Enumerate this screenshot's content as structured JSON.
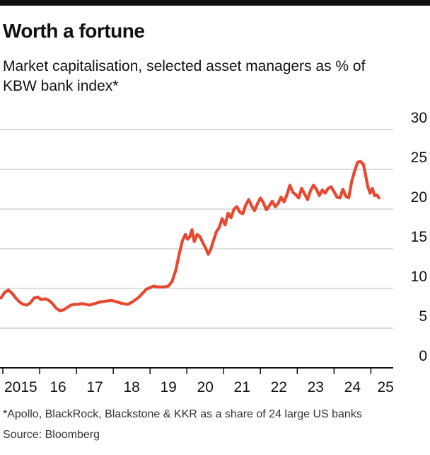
{
  "title": "Worth a fortune",
  "subtitle": "Market capitalisation, selected asset managers as % of KBW bank index*",
  "footnote": "*Apollo, BlackRock, Blackstone & KKR as a share of 24 large US banks",
  "source": "Source: Bloomberg",
  "colors": {
    "line": "#e8482f",
    "grid": "#c9c9c9",
    "text": "#111111",
    "axis": "#111111"
  },
  "chart_data": {
    "type": "line",
    "title": "Worth a fortune",
    "subtitle": "Market capitalisation, selected asset managers as % of KBW bank index*",
    "xlabel": "",
    "ylabel": "",
    "xlim": [
      2015,
      2025.8
    ],
    "ylim": [
      0,
      30
    ],
    "yticks": [
      0,
      5,
      10,
      15,
      20,
      25,
      30
    ],
    "xticks": [
      {
        "value": 2015,
        "label": "2015"
      },
      {
        "value": 2016,
        "label": "16"
      },
      {
        "value": 2017,
        "label": "17"
      },
      {
        "value": 2018,
        "label": "18"
      },
      {
        "value": 2019,
        "label": "19"
      },
      {
        "value": 2020,
        "label": "20"
      },
      {
        "value": 2021,
        "label": "21"
      },
      {
        "value": 2022,
        "label": "22"
      },
      {
        "value": 2023,
        "label": "23"
      },
      {
        "value": 2024,
        "label": "24"
      },
      {
        "value": 2025,
        "label": "25"
      }
    ],
    "grid": true,
    "series": [
      {
        "x": [
          2014.95,
          2015.05,
          2015.15,
          2015.25,
          2015.35,
          2015.45,
          2015.55,
          2015.65,
          2015.75,
          2015.85,
          2015.95,
          2016.05,
          2016.15,
          2016.25,
          2016.35,
          2016.45,
          2016.55,
          2016.65,
          2016.75,
          2016.85,
          2016.95,
          2017.05,
          2017.15,
          2017.25,
          2017.35,
          2017.5,
          2017.65,
          2017.8,
          2017.95,
          2018.1,
          2018.25,
          2018.4,
          2018.55,
          2018.7,
          2018.8,
          2018.9,
          2019.0,
          2019.1,
          2019.2,
          2019.3,
          2019.4,
          2019.5,
          2019.6,
          2019.7,
          2019.8,
          2019.88,
          2019.96,
          2020.02,
          2020.08,
          2020.14,
          2020.2,
          2020.28,
          2020.36,
          2020.44,
          2020.52,
          2020.58,
          2020.64,
          2020.72,
          2020.8,
          2020.88,
          2020.96,
          2021.04,
          2021.12,
          2021.2,
          2021.28,
          2021.36,
          2021.44,
          2021.52,
          2021.6,
          2021.68,
          2021.76,
          2021.84,
          2021.92,
          2022.0,
          2022.08,
          2022.16,
          2022.24,
          2022.32,
          2022.4,
          2022.48,
          2022.56,
          2022.64,
          2022.72,
          2022.8,
          2022.88,
          2022.96,
          2023.04,
          2023.12,
          2023.2,
          2023.28,
          2023.36,
          2023.44,
          2023.52,
          2023.6,
          2023.68,
          2023.76,
          2023.84,
          2023.92,
          2024.0,
          2024.08,
          2024.16,
          2024.24,
          2024.32,
          2024.4,
          2024.48,
          2024.56,
          2024.64,
          2024.72,
          2024.8,
          2024.86,
          2024.92,
          2024.98,
          2025.04,
          2025.1,
          2025.16,
          2025.22
        ],
        "values": [
          8.8,
          9.5,
          9.8,
          9.4,
          8.8,
          8.3,
          8.0,
          7.9,
          8.2,
          8.8,
          8.9,
          8.6,
          8.7,
          8.5,
          8.1,
          7.5,
          7.2,
          7.3,
          7.6,
          7.9,
          8.0,
          8.0,
          8.1,
          8.0,
          7.9,
          8.1,
          8.3,
          8.4,
          8.5,
          8.3,
          8.1,
          8.0,
          8.4,
          8.9,
          9.4,
          9.9,
          10.1,
          10.3,
          10.2,
          10.2,
          10.2,
          10.3,
          10.9,
          12.3,
          14.5,
          16.0,
          16.8,
          16.2,
          16.5,
          17.4,
          15.9,
          16.8,
          16.5,
          15.7,
          15.0,
          14.3,
          14.8,
          16.0,
          17.1,
          17.7,
          18.8,
          18.0,
          19.5,
          18.9,
          20.0,
          20.3,
          19.6,
          19.4,
          20.5,
          21.2,
          20.4,
          19.8,
          20.7,
          21.4,
          20.8,
          19.9,
          20.4,
          21.0,
          20.3,
          20.7,
          21.5,
          20.9,
          21.8,
          23.0,
          22.1,
          21.8,
          21.4,
          22.6,
          21.9,
          21.2,
          22.3,
          23.0,
          22.5,
          21.7,
          22.4,
          22.0,
          22.6,
          22.8,
          22.2,
          21.5,
          21.4,
          22.5,
          21.6,
          21.4,
          23.5,
          24.8,
          25.9,
          26.0,
          25.6,
          24.2,
          22.8,
          22.0,
          22.6,
          21.7,
          21.8,
          21.4
        ]
      }
    ]
  }
}
